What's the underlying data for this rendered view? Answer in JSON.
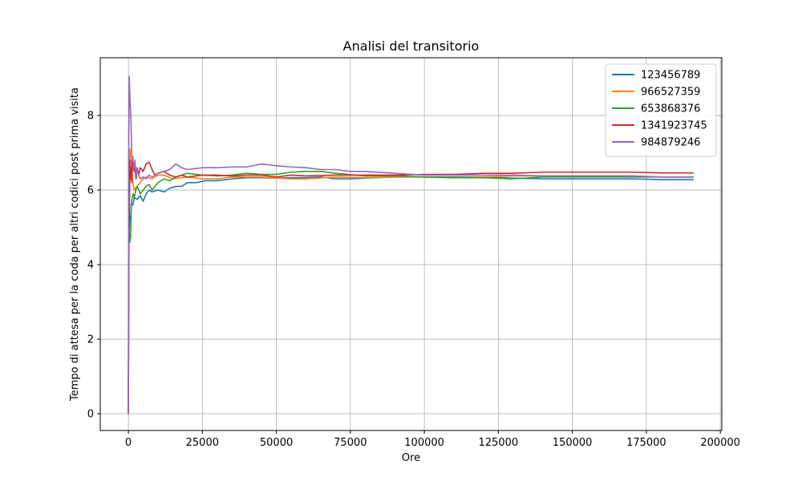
{
  "chart_data": {
    "type": "line",
    "title": "Analisi del transitorio",
    "xlabel": "Ore",
    "ylabel": "Tempo di attesa per la coda per altri codici post prima visita",
    "xlim": [
      -9500,
      200500
    ],
    "ylim": [
      -0.45,
      9.55
    ],
    "x_ticks": [
      0,
      25000,
      50000,
      75000,
      100000,
      125000,
      150000,
      175000,
      200000
    ],
    "x_tick_labels": [
      "0",
      "25000",
      "50000",
      "75000",
      "100000",
      "125000",
      "150000",
      "175000",
      "200000"
    ],
    "y_ticks": [
      0,
      2,
      4,
      6,
      8
    ],
    "y_tick_labels": [
      "0",
      "2",
      "4",
      "6",
      "8"
    ],
    "grid": true,
    "legend_position": "top-right",
    "series": [
      {
        "name": "123456789",
        "color": "#1f77b4",
        "x": [
          0,
          200,
          500,
          800,
          1000,
          1500,
          2000,
          3000,
          4000,
          5000,
          6000,
          7000,
          8000,
          10000,
          12000,
          14000,
          16000,
          18000,
          20000,
          23000,
          26000,
          30000,
          35000,
          40000,
          45000,
          50000,
          55000,
          60000,
          65000,
          70000,
          75000,
          80000,
          90000,
          100000,
          110000,
          120000,
          130000,
          140000,
          150000,
          160000,
          170000,
          180000,
          191000
        ],
        "y": [
          0.0,
          4.8,
          5.3,
          5.2,
          5.6,
          5.6,
          5.8,
          5.75,
          5.85,
          5.7,
          5.9,
          6.0,
          5.95,
          6.0,
          5.95,
          6.05,
          6.1,
          6.1,
          6.2,
          6.2,
          6.25,
          6.25,
          6.3,
          6.33,
          6.33,
          6.32,
          6.33,
          6.33,
          6.35,
          6.3,
          6.3,
          6.32,
          6.35,
          6.35,
          6.35,
          6.35,
          6.32,
          6.3,
          6.3,
          6.3,
          6.3,
          6.28,
          6.28
        ]
      },
      {
        "name": "966527359",
        "color": "#ff7f0e",
        "x": [
          0,
          200,
          400,
          600,
          800,
          1000,
          1500,
          2000,
          3000,
          4000,
          5000,
          6000,
          8000,
          10000,
          12000,
          15000,
          20000,
          25000,
          30000,
          35000,
          40000,
          45000,
          50000,
          55000,
          60000,
          70000,
          80000,
          90000,
          100000,
          110000,
          120000,
          130000,
          140000,
          150000,
          160000,
          170000,
          180000,
          191000
        ],
        "y": [
          0.0,
          5.6,
          6.8,
          7.1,
          6.5,
          6.8,
          6.2,
          6.0,
          6.1,
          6.2,
          6.3,
          6.35,
          6.3,
          6.4,
          6.4,
          6.3,
          6.35,
          6.3,
          6.3,
          6.35,
          6.35,
          6.35,
          6.32,
          6.3,
          6.3,
          6.35,
          6.33,
          6.35,
          6.35,
          6.33,
          6.35,
          6.38,
          6.38,
          6.38,
          6.38,
          6.38,
          6.35,
          6.35
        ]
      },
      {
        "name": "653868376",
        "color": "#2ca02c",
        "x": [
          0,
          200,
          500,
          800,
          1000,
          1300,
          1600,
          2000,
          2500,
          3000,
          4000,
          5000,
          6000,
          7000,
          8000,
          10000,
          12000,
          14000,
          16000,
          18000,
          20000,
          25000,
          30000,
          35000,
          40000,
          45000,
          50000,
          55000,
          60000,
          65000,
          70000,
          80000,
          90000,
          100000,
          110000,
          120000,
          130000,
          140000,
          150000,
          160000,
          170000,
          180000,
          191000
        ],
        "y": [
          0.0,
          5.0,
          4.6,
          4.8,
          5.6,
          5.8,
          5.9,
          5.8,
          6.0,
          6.1,
          5.9,
          6.0,
          6.1,
          6.15,
          6.0,
          6.2,
          6.3,
          6.25,
          6.35,
          6.4,
          6.45,
          6.4,
          6.38,
          6.4,
          6.45,
          6.42,
          6.42,
          6.48,
          6.5,
          6.5,
          6.45,
          6.38,
          6.38,
          6.35,
          6.33,
          6.33,
          6.3,
          6.35,
          6.35,
          6.35,
          6.35,
          6.35,
          6.35
        ]
      },
      {
        "name": "1341923745",
        "color": "#d62728",
        "x": [
          0,
          150,
          300,
          500,
          700,
          900,
          1100,
          1400,
          1800,
          2200,
          2600,
          3000,
          3500,
          4000,
          5000,
          6000,
          7000,
          8000,
          9000,
          10000,
          12000,
          14000,
          16000,
          18000,
          20000,
          25000,
          30000,
          35000,
          40000,
          45000,
          50000,
          55000,
          60000,
          70000,
          80000,
          90000,
          100000,
          110000,
          120000,
          130000,
          140000,
          150000,
          160000,
          170000,
          180000,
          191000
        ],
        "y": [
          0.0,
          5.5,
          5.0,
          6.8,
          6.3,
          6.6,
          6.2,
          6.9,
          6.5,
          6.6,
          6.3,
          6.6,
          6.4,
          6.6,
          6.5,
          6.7,
          6.75,
          6.55,
          6.4,
          6.45,
          6.5,
          6.4,
          6.35,
          6.4,
          6.35,
          6.4,
          6.4,
          6.38,
          6.4,
          6.4,
          6.35,
          6.4,
          6.38,
          6.4,
          6.4,
          6.4,
          6.42,
          6.42,
          6.45,
          6.45,
          6.48,
          6.48,
          6.48,
          6.48,
          6.46,
          6.46
        ]
      },
      {
        "name": "984879246",
        "color": "#9467bd",
        "x": [
          0,
          100,
          300,
          500,
          700,
          900,
          1100,
          1300,
          1500,
          1800,
          2200,
          2600,
          3000,
          3500,
          4000,
          5000,
          6000,
          7000,
          8000,
          10000,
          12000,
          14000,
          16000,
          18000,
          20000,
          25000,
          30000,
          35000,
          40000,
          45000,
          50000,
          55000,
          60000,
          65000,
          70000,
          75000,
          80000,
          90000,
          100000,
          110000,
          120000,
          130000,
          140000,
          150000,
          160000,
          170000,
          180000,
          191000
        ],
        "y": [
          0.0,
          7.0,
          9.05,
          8.5,
          8.2,
          7.8,
          7.0,
          6.8,
          6.9,
          6.5,
          6.8,
          6.4,
          6.6,
          6.4,
          6.3,
          6.35,
          6.3,
          6.4,
          6.35,
          6.45,
          6.5,
          6.55,
          6.7,
          6.6,
          6.55,
          6.6,
          6.6,
          6.62,
          6.62,
          6.7,
          6.65,
          6.62,
          6.6,
          6.55,
          6.55,
          6.5,
          6.5,
          6.45,
          6.4,
          6.4,
          6.4,
          6.4,
          6.38,
          6.38,
          6.38,
          6.38,
          6.35,
          6.35
        ]
      }
    ]
  }
}
